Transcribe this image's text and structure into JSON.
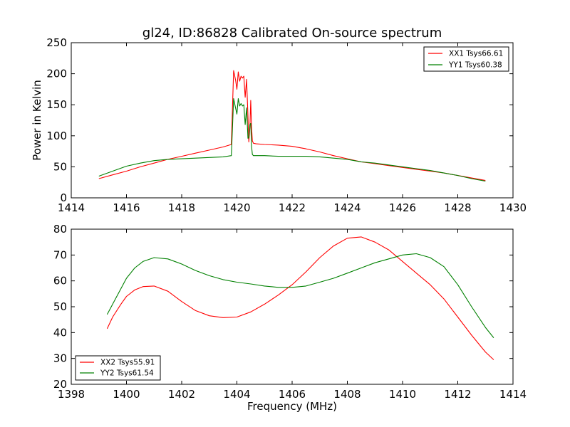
{
  "chart_data": [
    {
      "type": "line",
      "title": "gl24, ID:86828 Calibrated On-source spectrum",
      "xlabel": "",
      "ylabel": "Power in Kelvin",
      "xlim": [
        1414,
        1430
      ],
      "ylim": [
        0,
        250
      ],
      "xticks": [
        1414,
        1416,
        1418,
        1420,
        1422,
        1424,
        1426,
        1428,
        1430
      ],
      "yticks": [
        0,
        50,
        100,
        150,
        200,
        250
      ],
      "legend_position": "top-right",
      "series": [
        {
          "name": "XX1 Tsys66.61",
          "color": "#ff0000",
          "x": [
            1415.0,
            1415.5,
            1416.0,
            1416.5,
            1417.0,
            1417.5,
            1418.0,
            1418.5,
            1419.0,
            1419.5,
            1419.8,
            1419.88,
            1419.95,
            1420.0,
            1420.05,
            1420.1,
            1420.15,
            1420.2,
            1420.25,
            1420.3,
            1420.35,
            1420.4,
            1420.43,
            1420.47,
            1420.5,
            1420.53,
            1420.56,
            1420.6,
            1420.7,
            1421.0,
            1421.5,
            1422.0,
            1422.5,
            1423.0,
            1423.5,
            1424.0,
            1424.5,
            1425.0,
            1425.5,
            1426.0,
            1426.5,
            1427.0,
            1427.5,
            1428.0,
            1428.5,
            1429.0
          ],
          "values": [
            31,
            37,
            43,
            50,
            56,
            62,
            67,
            72,
            77,
            82,
            86,
            205,
            190,
            175,
            203,
            188,
            196,
            193,
            196,
            162,
            191,
            132,
            90,
            113,
            157,
            115,
            92,
            88,
            87,
            86,
            85,
            83,
            79,
            74,
            68,
            63,
            58,
            55,
            52,
            49,
            46,
            43,
            40,
            36,
            32,
            28
          ]
        },
        {
          "name": "YY1 Tsys60.38",
          "color": "#008000",
          "x": [
            1415.0,
            1415.5,
            1416.0,
            1416.5,
            1417.0,
            1417.5,
            1418.0,
            1418.5,
            1419.0,
            1419.5,
            1419.8,
            1419.88,
            1419.95,
            1420.0,
            1420.05,
            1420.1,
            1420.15,
            1420.2,
            1420.25,
            1420.3,
            1420.35,
            1420.4,
            1420.43,
            1420.47,
            1420.5,
            1420.53,
            1420.56,
            1420.6,
            1420.7,
            1421.0,
            1421.5,
            1422.0,
            1422.5,
            1423.0,
            1423.5,
            1424.0,
            1424.5,
            1425.0,
            1425.5,
            1426.0,
            1426.5,
            1427.0,
            1427.5,
            1428.0,
            1428.5,
            1429.0
          ],
          "values": [
            35,
            43,
            51,
            56,
            60,
            62,
            63,
            64,
            65,
            66,
            68,
            160,
            145,
            135,
            160,
            148,
            152,
            148,
            150,
            118,
            145,
            96,
            97,
            118,
            120,
            84,
            70,
            68,
            68,
            68,
            67,
            67,
            67,
            66,
            64,
            62,
            58,
            56,
            53,
            50,
            47,
            44,
            40,
            36,
            31,
            27
          ]
        }
      ]
    },
    {
      "type": "line",
      "title": "",
      "xlabel": "Frequency (MHz)",
      "ylabel": "",
      "xlim": [
        1398,
        1414
      ],
      "ylim": [
        20,
        80
      ],
      "xticks": [
        1398,
        1400,
        1402,
        1404,
        1406,
        1408,
        1410,
        1412,
        1414
      ],
      "yticks": [
        20,
        30,
        40,
        50,
        60,
        70,
        80
      ],
      "legend_position": "bottom-left",
      "series": [
        {
          "name": "XX2 Tsys55.91",
          "color": "#ff0000",
          "x": [
            1399.3,
            1399.5,
            1399.8,
            1400.0,
            1400.3,
            1400.6,
            1401.0,
            1401.5,
            1402.0,
            1402.5,
            1403.0,
            1403.5,
            1404.0,
            1404.5,
            1405.0,
            1405.5,
            1406.0,
            1406.5,
            1407.0,
            1407.5,
            1408.0,
            1408.5,
            1409.0,
            1409.5,
            1410.0,
            1410.5,
            1411.0,
            1411.5,
            1412.0,
            1412.5,
            1413.0,
            1413.3
          ],
          "values": [
            41.5,
            46,
            51,
            54,
            56.5,
            57.8,
            58,
            56,
            52,
            48.5,
            46.5,
            45.8,
            46,
            48,
            51,
            54.5,
            58.5,
            63.5,
            69,
            73.5,
            76.5,
            77,
            75,
            72,
            67.5,
            63,
            58.5,
            53,
            46,
            39,
            32.5,
            29.5
          ]
        },
        {
          "name": "YY2 Tsys61.54",
          "color": "#008000",
          "x": [
            1399.3,
            1399.5,
            1399.8,
            1400.0,
            1400.3,
            1400.6,
            1401.0,
            1401.5,
            1402.0,
            1402.5,
            1403.0,
            1403.5,
            1404.0,
            1404.5,
            1405.0,
            1405.5,
            1406.0,
            1406.5,
            1407.0,
            1407.5,
            1408.0,
            1408.5,
            1409.0,
            1409.5,
            1410.0,
            1410.5,
            1411.0,
            1411.5,
            1412.0,
            1412.5,
            1413.0,
            1413.3
          ],
          "values": [
            47,
            51,
            57,
            61,
            65,
            67.5,
            69,
            68.5,
            66.5,
            64,
            62,
            60.5,
            59.5,
            58.8,
            58,
            57.5,
            57.5,
            58,
            59.5,
            61,
            63,
            65,
            67,
            68.5,
            70,
            70.5,
            69,
            65.5,
            58.5,
            50,
            42,
            38
          ]
        }
      ]
    }
  ]
}
